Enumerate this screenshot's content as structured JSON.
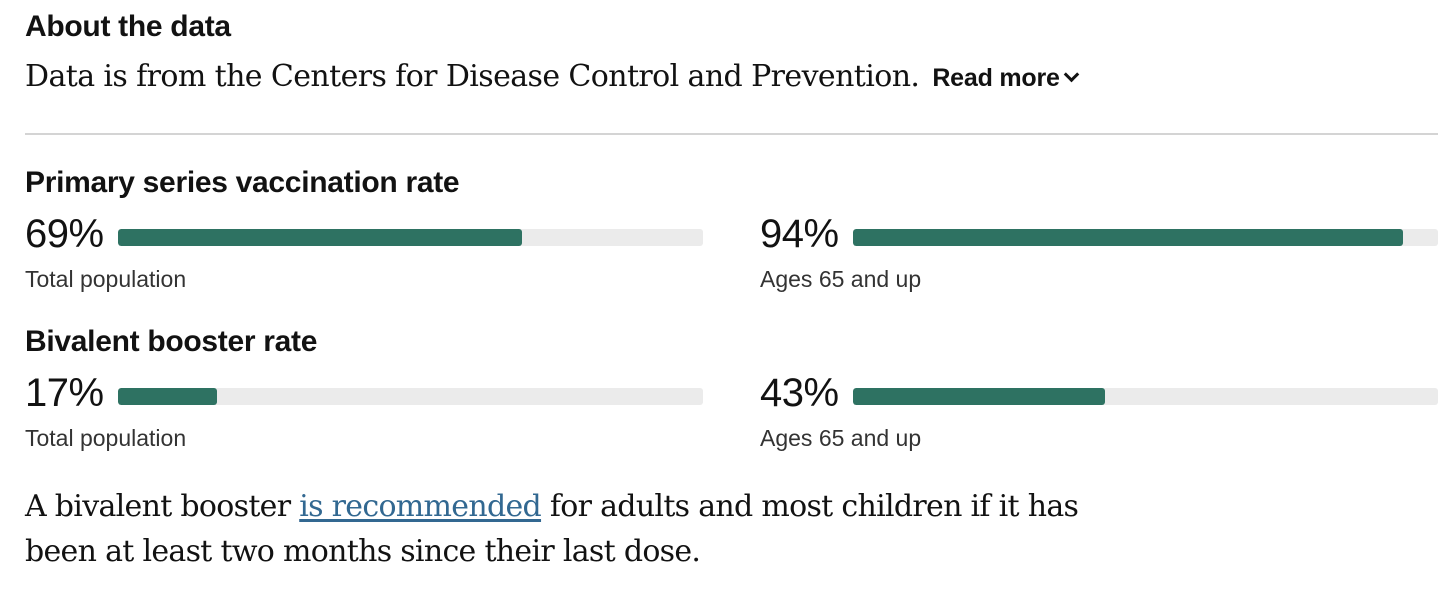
{
  "about": {
    "heading": "About the data",
    "text": "Data is from the Centers for Disease Control and Prevention.",
    "read_more_label": "Read more"
  },
  "colors": {
    "bar_fill": "#2e7262",
    "bar_track": "#ebebeb",
    "link": "#326891"
  },
  "chart_data": [
    {
      "type": "bar",
      "title": "Primary series vaccination rate",
      "categories": [
        "Total population",
        "Ages 65 and up"
      ],
      "values": [
        69,
        94
      ],
      "labels": [
        "69%",
        "94%"
      ],
      "ylim": [
        0,
        100
      ]
    },
    {
      "type": "bar",
      "title": "Bivalent booster rate",
      "categories": [
        "Total population",
        "Ages 65 and up"
      ],
      "values": [
        17,
        43
      ],
      "labels": [
        "17%",
        "43%"
      ],
      "ylim": [
        0,
        100
      ]
    }
  ],
  "note": {
    "before_link": "A bivalent booster ",
    "link_text": "is recommended",
    "after_link": " for adults and most children if it has been at least two months since their last dose."
  }
}
